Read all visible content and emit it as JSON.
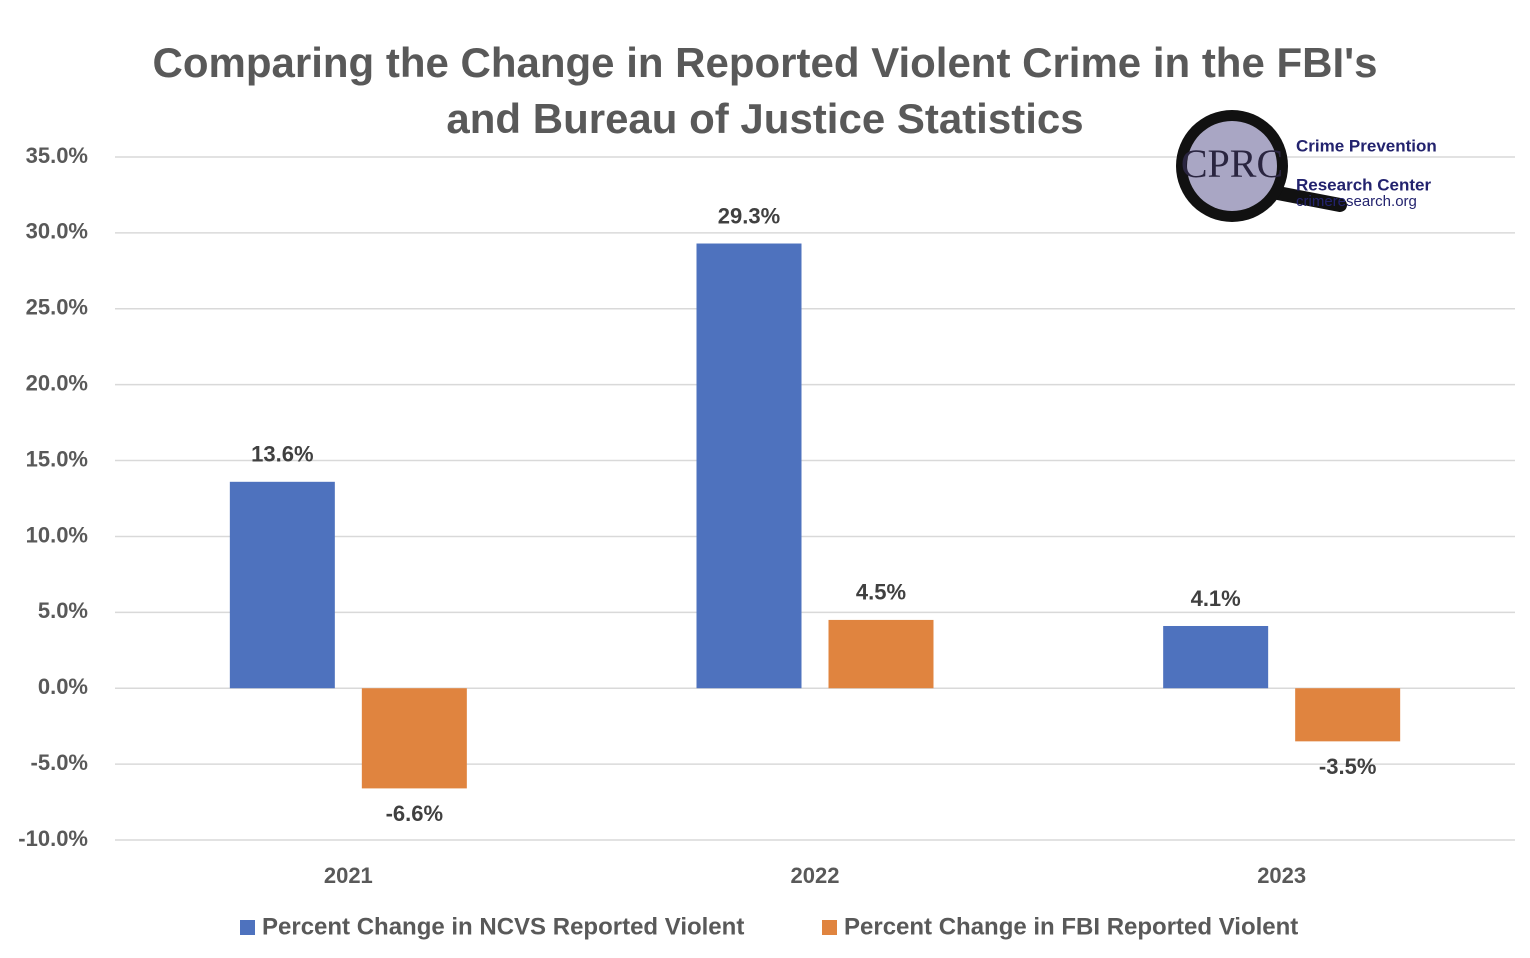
{
  "chart_data": {
    "type": "bar",
    "title": [
      "Comparing the Change in Reported Violent Crime in the FBI's",
      "and Bureau of Justice Statistics"
    ],
    "categories": [
      "2021",
      "2022",
      "2023"
    ],
    "series": [
      {
        "name": "Percent Change in NCVS Reported Violent",
        "color": "#4e72be",
        "values": [
          13.6,
          29.3,
          4.1
        ],
        "value_labels": [
          "13.6%",
          "29.3%",
          "4.1%"
        ]
      },
      {
        "name": "Percent Change in FBI Reported Violent",
        "color": "#e0843f",
        "values": [
          -6.6,
          4.5,
          -3.5
        ],
        "value_labels": [
          "-6.6%",
          "4.5%",
          "-3.5%"
        ]
      }
    ],
    "ylim": [
      -10,
      35
    ],
    "yticks": [
      {
        "value": -10,
        "label": "-10.0%"
      },
      {
        "value": -5,
        "label": "-5.0%"
      },
      {
        "value": 0,
        "label": "0.0%"
      },
      {
        "value": 5,
        "label": "5.0%"
      },
      {
        "value": 10,
        "label": "10.0%"
      },
      {
        "value": 15,
        "label": "15.0%"
      },
      {
        "value": 20,
        "label": "20.0%"
      },
      {
        "value": 25,
        "label": "25.0%"
      },
      {
        "value": 30,
        "label": "30.0%"
      },
      {
        "value": 35,
        "label": "35.0%"
      }
    ],
    "grid": true,
    "legend": "bottom"
  },
  "logo": {
    "mark": "CPRC",
    "lines": [
      "Crime Prevention",
      "Research Center"
    ],
    "url": "crimeresearch.org"
  }
}
